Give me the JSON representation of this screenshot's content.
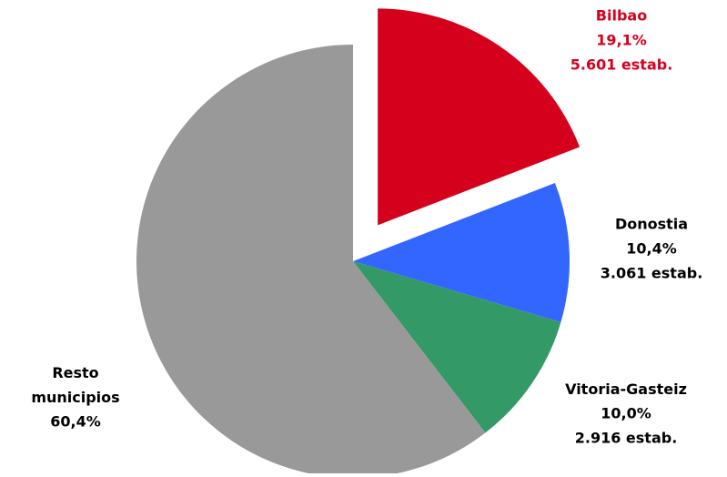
{
  "chart_data": {
    "type": "pie",
    "categories": [
      "Bilbao",
      "Donostia",
      "Vitoria-Gasteiz",
      "Resto municipios"
    ],
    "values": [
      19.1,
      10.4,
      10.0,
      60.4
    ],
    "value_labels": [
      "19,1%",
      "10,4%",
      "10,0%",
      "60,4%"
    ],
    "count_labels": [
      "5.601 estab.",
      "3.061 estab.",
      "2.916 estab.",
      null
    ],
    "colors": [
      "#d5001c",
      "#3366ff",
      "#339966",
      "#999999"
    ],
    "label_colors": [
      "#d5001c",
      "#000000",
      "#000000",
      "#000000"
    ],
    "exploded": [
      true,
      false,
      false,
      false
    ]
  }
}
